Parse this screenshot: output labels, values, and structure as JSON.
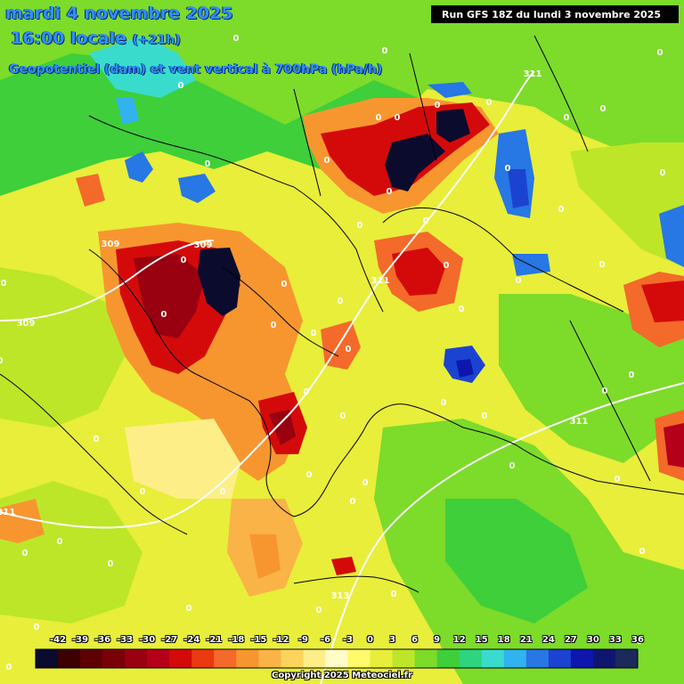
{
  "header": {
    "date": "mardi 4 novembre 2025",
    "time": "16:00 locale",
    "lead": "(+21h)",
    "parameter": "Geopotentiel (dam) et vent vertical à 700hPa (hPa/h)",
    "run": "Run GFS 18Z du lundi 3 novembre 2025"
  },
  "legend": {
    "ticks": [
      "-42",
      "-39",
      "-36",
      "-33",
      "-30",
      "-27",
      "-24",
      "-21",
      "-18",
      "-15",
      "-12",
      "-9",
      "-6",
      "-3",
      "0",
      "3",
      "6",
      "9",
      "12",
      "15",
      "18",
      "21",
      "24",
      "27",
      "30",
      "33",
      "36"
    ],
    "colors": [
      "#0b0b2e",
      "#3d0000",
      "#5e0000",
      "#7a0008",
      "#990010",
      "#b5001a",
      "#d40a0a",
      "#ea3a0f",
      "#f36a2a",
      "#f7962f",
      "#fab346",
      "#fcd45c",
      "#fdee88",
      "#fffcc8",
      "#fffb6a",
      "#e8ee3a",
      "#bde629",
      "#7ddb2a",
      "#3ecf3a",
      "#2ed47e",
      "#39dccc",
      "#32b2ee",
      "#2777e4",
      "#1b43d2",
      "#0d17ae",
      "#10166f",
      "#1b2a5a"
    ],
    "copyright": "Copyright 2025 Meteociel.fr"
  },
  "isolines": {
    "labels": [
      "0",
      "0",
      "0",
      "0",
      "0",
      "0",
      "0",
      "0",
      "0",
      "0",
      "0",
      "0",
      "0",
      "0",
      "0",
      "0",
      "0",
      "0",
      "0",
      "0",
      "0",
      "0",
      "0",
      "0",
      "0",
      "0",
      "0",
      "0",
      "0",
      "0",
      "0",
      "0",
      "0",
      "0",
      "0",
      "0",
      "0",
      "0",
      "0",
      "0",
      "0",
      "0",
      "0",
      "0",
      "0",
      "0",
      "0",
      "0",
      "0",
      "0",
      "0",
      "0",
      "0",
      "0",
      "0",
      "309",
      "309",
      "309",
      "311",
      "311",
      "311",
      "311",
      "313"
    ]
  },
  "colors": {
    "zero_yellow": "#e8ee3a",
    "light_green": "#7ddb2a",
    "strong_ascent": "#0b0b2e",
    "strong_descent_blue": "#1b43d2"
  }
}
